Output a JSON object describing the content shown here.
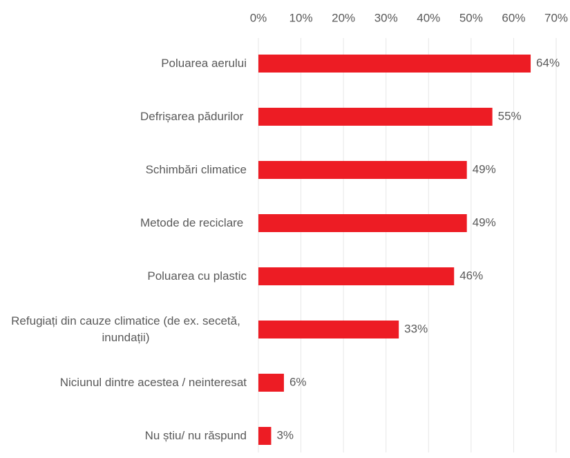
{
  "chart_data": {
    "type": "bar",
    "orientation": "horizontal",
    "categories": [
      "Poluarea aerului",
      "Defrișarea pădurilor ",
      "Schimbări climatice",
      "Metode de reciclare ",
      "Poluarea cu plastic",
      "Refugiați din cauze climatice (de ex. secetă, inundații)",
      "Niciunul dintre acestea / neinteresat",
      "Nu știu/ nu răspund"
    ],
    "values": [
      64,
      55,
      49,
      49,
      46,
      33,
      6,
      3
    ],
    "value_labels": [
      "64%",
      "55%",
      "49%",
      "49%",
      "46%",
      "33%",
      "6%",
      "3%"
    ],
    "color": "#ed1c24",
    "xlim": [
      0,
      70
    ],
    "xticks": [
      {
        "value": 0,
        "label": "0%"
      },
      {
        "value": 10,
        "label": "10%"
      },
      {
        "value": 20,
        "label": "20%"
      },
      {
        "value": 30,
        "label": "30%"
      },
      {
        "value": 40,
        "label": "40%"
      },
      {
        "value": 50,
        "label": "50%"
      },
      {
        "value": 60,
        "label": "60%"
      },
      {
        "value": 70,
        "label": "70%"
      }
    ],
    "grid": true
  }
}
